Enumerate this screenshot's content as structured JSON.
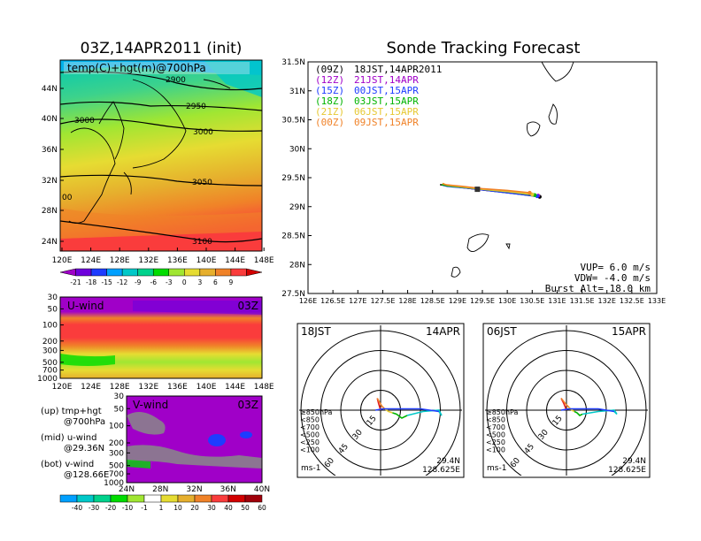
{
  "header": {
    "left_title": "03Z,14APR2011 (init)",
    "right_title": "Sonde Tracking Forecast"
  },
  "map_panel": {
    "label": "temp(C)+hgt(m)@700hPa",
    "lat_ticks": [
      "44N",
      "40N",
      "36N",
      "32N",
      "28N",
      "24N"
    ],
    "lon_ticks": [
      "120E",
      "124E",
      "128E",
      "132E",
      "136E",
      "140E",
      "144E",
      "148E"
    ],
    "contour_labels": [
      "2900",
      "2950",
      "3000",
      "3000",
      "3050",
      "3100",
      "00"
    ],
    "colorbar_labels": [
      "-21",
      "-18",
      "-15",
      "-12",
      "-9",
      "-6",
      "-3",
      "0",
      "3",
      "6",
      "9"
    ],
    "colorbar_colors": [
      "#a000c8",
      "#6e00dc",
      "#1e3cff",
      "#00a0ff",
      "#00c8c8",
      "#00d28c",
      "#00dc00",
      "#a0e632",
      "#e6dc32",
      "#e6af2d",
      "#f08228",
      "#fa3c3c",
      "#d20000"
    ]
  },
  "uwind_panel": {
    "label": "U-wind",
    "time": "03Z",
    "pressure_ticks": [
      "30",
      "50",
      "100",
      "200",
      "300",
      "500",
      "700",
      "1000"
    ],
    "lon_ticks": [
      "120E",
      "124E",
      "128E",
      "132E",
      "136E",
      "140E",
      "144E",
      "148E"
    ]
  },
  "vwind_panel": {
    "label": "V-wind",
    "time": "03Z",
    "pressure_ticks": [
      "30",
      "50",
      "100",
      "200",
      "300",
      "500",
      "700",
      "1000"
    ],
    "lat_ticks": [
      "24N",
      "28N",
      "32N",
      "36N",
      "40N"
    ],
    "colorbar_labels": [
      "-40",
      "-30",
      "-20",
      "-10",
      "-1",
      "1",
      "10",
      "20",
      "30",
      "40",
      "50",
      "60"
    ],
    "colorbar_colors": [
      "#00a0ff",
      "#00c8c8",
      "#00d28c",
      "#00dc00",
      "#a0e632",
      "#ffffff",
      "#e6dc32",
      "#e6af2d",
      "#f08228",
      "#fa3c3c",
      "#d20000",
      "#a0000a"
    ]
  },
  "legend_notes": [
    {
      "line1": "(up) tmp+hgt",
      "line2": "@700hPa"
    },
    {
      "line1": "(mid) u-wind",
      "line2": "@29.36N"
    },
    {
      "line1": "(bot) v-wind",
      "line2": "@128.66E"
    }
  ],
  "tracking_panel": {
    "lat_ticks": [
      "31.5N",
      "31N",
      "30.5N",
      "30N",
      "29.5N",
      "29N",
      "28.5N",
      "28N",
      "27.5N"
    ],
    "lon_ticks": [
      "126E",
      "126.5E",
      "127E",
      "127.5E",
      "128E",
      "128.5E",
      "129E",
      "129.5E",
      "130E",
      "130.5E",
      "131E",
      "131.5E",
      "132E",
      "132.5E",
      "133E"
    ],
    "launches": [
      {
        "code": "(09Z)",
        "time": "18JST,14APR2011",
        "color": "#000000"
      },
      {
        "code": "(12Z)",
        "time": "21JST,14APR",
        "color": "#a000c8"
      },
      {
        "code": "(15Z)",
        "time": "00JST,15APR",
        "color": "#1e3cff"
      },
      {
        "code": "(18Z)",
        "time": "03JST,15APR",
        "color": "#00b400"
      },
      {
        "code": "(21Z)",
        "time": "06JST,15APR",
        "color": "#e6c832"
      },
      {
        "code": "(00Z)",
        "time": "09JST,15APR",
        "color": "#f08228"
      }
    ],
    "params": [
      "VUP= 6.0 m/s",
      "VDW= -4.0 m/s",
      "Burst Alt= 18.0 km"
    ]
  },
  "hodographs": [
    {
      "time": "18JST",
      "date": "14APR",
      "rings": [
        "15",
        "30",
        "45",
        "60"
      ],
      "units": "ms-1",
      "lat": "29.4N",
      "lon": "128.625E",
      "levels": [
        {
          "label": "≥850hPa",
          "color": "#e61e1e"
        },
        {
          "label": "<850",
          "color": "#f08228"
        },
        {
          "label": "<700",
          "color": "#e6c832"
        },
        {
          "label": "<500",
          "color": "#00b400"
        },
        {
          "label": "<250",
          "color": "#00c8c8"
        },
        {
          "label": "<100",
          "color": "#1e3cff"
        }
      ]
    },
    {
      "time": "06JST",
      "date": "15APR",
      "rings": [
        "15",
        "30",
        "45",
        "60"
      ],
      "units": "ms-1",
      "lat": "29.4N",
      "lon": "128.625E",
      "levels": [
        {
          "label": "≥850hPa",
          "color": "#e61e1e"
        },
        {
          "label": "<850",
          "color": "#f08228"
        },
        {
          "label": "<700",
          "color": "#e6c832"
        },
        {
          "label": "<500",
          "color": "#00b400"
        },
        {
          "label": "<250",
          "color": "#00c8c8"
        },
        {
          "label": "<100",
          "color": "#1e3cff"
        }
      ]
    }
  ],
  "chart_data": [
    {
      "type": "line",
      "title": "Sonde Tracking Forecast",
      "xlim": [
        126,
        133
      ],
      "ylim": [
        27.5,
        31.5
      ],
      "series": [
        {
          "name": "(09Z) 18JST,14APR2011",
          "x": [
            130.65,
            130.2,
            129.7,
            129.3,
            128.9,
            128.65
          ],
          "y": [
            29.17,
            29.22,
            29.27,
            29.31,
            29.35,
            29.38
          ]
        },
        {
          "name": "(12Z) 21JST,14APR",
          "x": [
            130.62,
            130.1,
            129.6,
            129.2,
            128.8,
            128.7
          ],
          "y": [
            29.19,
            29.24,
            29.28,
            29.32,
            29.36,
            29.39
          ]
        },
        {
          "name": "(15Z) 00JST,15APR",
          "x": [
            130.6,
            130.1,
            129.6,
            129.2,
            128.8,
            128.7
          ],
          "y": [
            29.18,
            29.23,
            29.28,
            29.32,
            29.35,
            29.37
          ]
        },
        {
          "name": "(18Z) 03JST,15APR",
          "x": [
            130.55,
            130.1,
            129.6,
            129.15,
            128.8,
            128.68
          ],
          "y": [
            29.2,
            29.25,
            29.29,
            29.33,
            29.36,
            29.38
          ]
        },
        {
          "name": "(21Z) 06JST,15APR",
          "x": [
            130.5,
            130.0,
            129.5,
            129.1,
            128.8,
            128.7
          ],
          "y": [
            29.21,
            29.26,
            29.3,
            29.34,
            29.37,
            29.4
          ]
        },
        {
          "name": "(00Z) 09JST,15APR",
          "x": [
            130.45,
            130.0,
            129.5,
            129.1,
            128.75,
            128.7
          ],
          "y": [
            29.24,
            29.28,
            29.31,
            29.35,
            29.38,
            29.4
          ]
        }
      ]
    },
    {
      "type": "line",
      "title": "18JST 14APR",
      "xlim": [
        -60,
        60
      ],
      "ylim": [
        -60,
        60
      ],
      "series": [
        {
          "name": "≥850hPa",
          "x": [
            0,
            -1.5,
            -2.5
          ],
          "y": [
            0,
            5,
            9
          ]
        },
        {
          "name": "<850",
          "x": [
            -2.5,
            1,
            3
          ],
          "y": [
            9,
            3,
            1
          ]
        },
        {
          "name": "<700",
          "x": [
            3,
            6,
            9
          ],
          "y": [
            1,
            -1,
            -2
          ]
        },
        {
          "name": "<500",
          "x": [
            9,
            12,
            16,
            20
          ],
          "y": [
            -2,
            -3,
            -6,
            -4
          ]
        },
        {
          "name": "<250",
          "x": [
            20,
            32,
            44,
            46,
            44
          ],
          "y": [
            -4,
            -1,
            0,
            -4,
            -1
          ]
        },
        {
          "name": "<100",
          "x": [
            44,
            30,
            16,
            2,
            -4
          ],
          "y": [
            -1,
            1,
            1,
            1,
            0
          ]
        }
      ]
    },
    {
      "type": "line",
      "title": "06JST 15APR",
      "xlim": [
        -60,
        60
      ],
      "ylim": [
        -60,
        60
      ],
      "series": [
        {
          "name": "≥850hPa",
          "x": [
            0,
            -2,
            -4
          ],
          "y": [
            0,
            5,
            9
          ]
        },
        {
          "name": "<850",
          "x": [
            -4,
            0,
            2
          ],
          "y": [
            9,
            4,
            2
          ]
        },
        {
          "name": "<700",
          "x": [
            2,
            4,
            6
          ],
          "y": [
            2,
            0,
            -1
          ]
        },
        {
          "name": "<500",
          "x": [
            6,
            8,
            10,
            12
          ],
          "y": [
            -1,
            -2,
            -4,
            -3
          ]
        },
        {
          "name": "<250",
          "x": [
            12,
            24,
            36,
            38,
            36
          ],
          "y": [
            -3,
            -1,
            0,
            -3,
            -1
          ]
        },
        {
          "name": "<100",
          "x": [
            36,
            24,
            12,
            2,
            -4
          ],
          "y": [
            -1,
            1,
            1,
            1,
            0
          ]
        }
      ]
    }
  ]
}
